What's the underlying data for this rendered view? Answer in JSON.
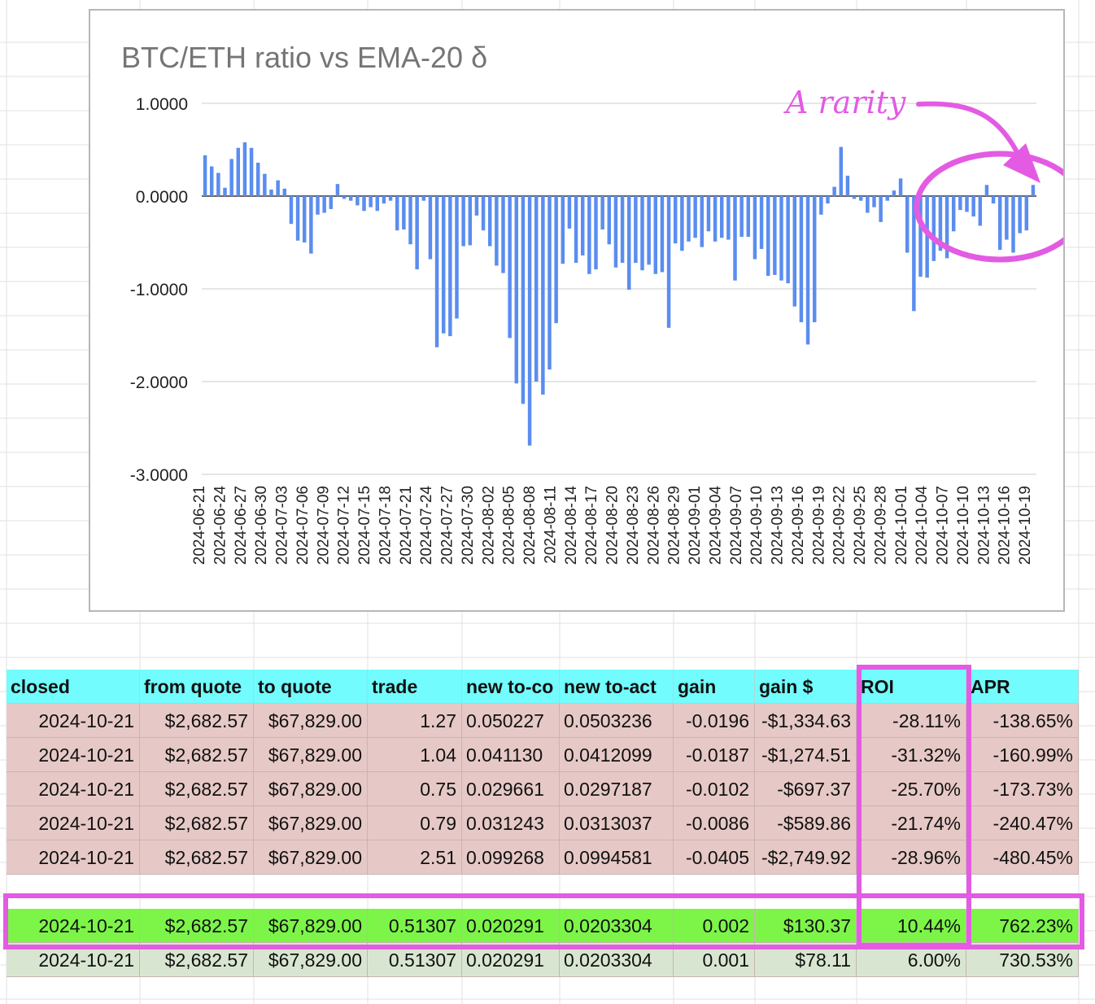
{
  "chart_data": {
    "type": "bar",
    "title": "BTC/ETH ratio vs EMA-20 δ",
    "xlabel": "",
    "ylabel": "",
    "ylim": [
      -3,
      1
    ],
    "y_ticks": [
      "1.0000",
      "0.0000",
      "-1.0000",
      "-2.0000",
      "-3.0000"
    ],
    "grid": true,
    "bar_color": "#5b8def",
    "x_tick_labels": [
      "2024-06-21",
      "2024-06-24",
      "2024-06-27",
      "2024-06-30",
      "2024-07-03",
      "2024-07-06",
      "2024-07-09",
      "2024-07-12",
      "2024-07-15",
      "2024-07-18",
      "2024-07-21",
      "2024-07-24",
      "2024-07-27",
      "2024-07-30",
      "2024-08-02",
      "2024-08-05",
      "2024-08-08",
      "2024-08-11",
      "2024-08-14",
      "2024-08-17",
      "2024-08-20",
      "2024-08-23",
      "2024-08-26",
      "2024-08-29",
      "2024-09-01",
      "2024-09-04",
      "2024-09-07",
      "2024-09-10",
      "2024-09-13",
      "2024-09-16",
      "2024-09-19",
      "2024-09-22",
      "2024-09-25",
      "2024-09-28",
      "2024-10-01",
      "2024-10-04",
      "2024-10-07",
      "2024-10-10",
      "2024-10-13",
      "2024-10-16",
      "2024-10-19"
    ],
    "values": [
      0.44,
      0.32,
      0.25,
      0.09,
      0.4,
      0.52,
      0.58,
      0.52,
      0.36,
      0.24,
      0.07,
      0.17,
      0.08,
      -0.3,
      -0.48,
      -0.5,
      -0.62,
      -0.2,
      -0.18,
      -0.14,
      0.13,
      -0.03,
      -0.05,
      -0.1,
      -0.16,
      -0.12,
      -0.16,
      -0.08,
      -0.05,
      -0.37,
      -0.36,
      -0.52,
      -0.79,
      -0.05,
      -0.68,
      -1.63,
      -1.48,
      -1.51,
      -1.32,
      -0.54,
      -0.53,
      -0.21,
      -0.37,
      -0.54,
      -0.75,
      -0.83,
      -1.53,
      -2.02,
      -2.24,
      -2.69,
      -2.0,
      -2.14,
      -1.87,
      -1.37,
      -0.73,
      -0.35,
      -0.72,
      -0.64,
      -0.84,
      -0.79,
      -0.36,
      -0.52,
      -0.77,
      -0.72,
      -1.01,
      -0.72,
      -0.8,
      -0.74,
      -0.84,
      -0.82,
      -1.42,
      -0.51,
      -0.59,
      -0.49,
      -0.45,
      -0.55,
      -0.38,
      -0.49,
      -0.45,
      -0.47,
      -0.91,
      -0.44,
      -0.44,
      -0.68,
      -0.57,
      -0.86,
      -0.85,
      -0.91,
      -0.94,
      -1.19,
      -1.36,
      -1.6,
      -1.36,
      -0.2,
      -0.08,
      0.1,
      0.53,
      0.22,
      -0.03,
      -0.05,
      -0.18,
      -0.12,
      -0.28,
      -0.05,
      0.06,
      0.19,
      -0.61,
      -1.24,
      -0.87,
      -0.88,
      -0.7,
      -0.59,
      -0.67,
      -0.38,
      -0.15,
      -0.17,
      -0.22,
      -0.32,
      0.12,
      -0.08,
      -0.58,
      -0.47,
      -0.61,
      -0.4,
      -0.37,
      0.12
    ],
    "annotations": [
      {
        "text": "A rarity"
      }
    ]
  },
  "table": {
    "headers": [
      "closed",
      "from quote",
      "to quote",
      "trade",
      "new to-co",
      "new to-act",
      "gain",
      "gain $",
      "ROI",
      "APR"
    ],
    "header_bg": "#72fcfd",
    "rows": [
      {
        "status": "loss",
        "cells": [
          "2024-10-21",
          "$2,682.57",
          "$67,829.00",
          "1.27",
          "0.050227",
          "0.0503236",
          "-0.0196",
          "-$1,334.63",
          "-28.11%",
          "-138.65%"
        ]
      },
      {
        "status": "loss",
        "cells": [
          "2024-10-21",
          "$2,682.57",
          "$67,829.00",
          "1.04",
          "0.041130",
          "0.0412099",
          "-0.0187",
          "-$1,274.51",
          "-31.32%",
          "-160.99%"
        ]
      },
      {
        "status": "loss",
        "cells": [
          "2024-10-21",
          "$2,682.57",
          "$67,829.00",
          "0.75",
          "0.029661",
          "0.0297187",
          "-0.0102",
          "-$697.37",
          "-25.70%",
          "-173.73%"
        ]
      },
      {
        "status": "loss",
        "cells": [
          "2024-10-21",
          "$2,682.57",
          "$67,829.00",
          "0.79",
          "0.031243",
          "0.0313037",
          "-0.0086",
          "-$589.86",
          "-21.74%",
          "-240.47%"
        ]
      },
      {
        "status": "loss",
        "cells": [
          "2024-10-21",
          "$2,682.57",
          "$67,829.00",
          "2.51",
          "0.099268",
          "0.0994581",
          "-0.0405",
          "-$2,749.92",
          "-28.96%",
          "-480.45%"
        ]
      },
      {
        "status": "spacer",
        "cells": []
      },
      {
        "status": "highlight",
        "cells": [
          "2024-10-21",
          "$2,682.57",
          "$67,829.00",
          "0.51307",
          "0.020291",
          "0.0203304",
          "0.002",
          "$130.37",
          "10.44%",
          "762.23%"
        ]
      },
      {
        "status": "gain",
        "cells": [
          "2024-10-21",
          "$2,682.57",
          "$67,829.00",
          "0.51307",
          "0.020291",
          "0.0203304",
          "0.001",
          "$78.11",
          "6.00%",
          "730.53%"
        ]
      }
    ]
  },
  "colors": {
    "loss_row": "#e6c9c6",
    "highlight_row": "#7cf548",
    "gain_row": "#d8e6d1",
    "annotation": "#e35be3",
    "gridline": "#e0e0e0",
    "header": "#72fcfd"
  }
}
